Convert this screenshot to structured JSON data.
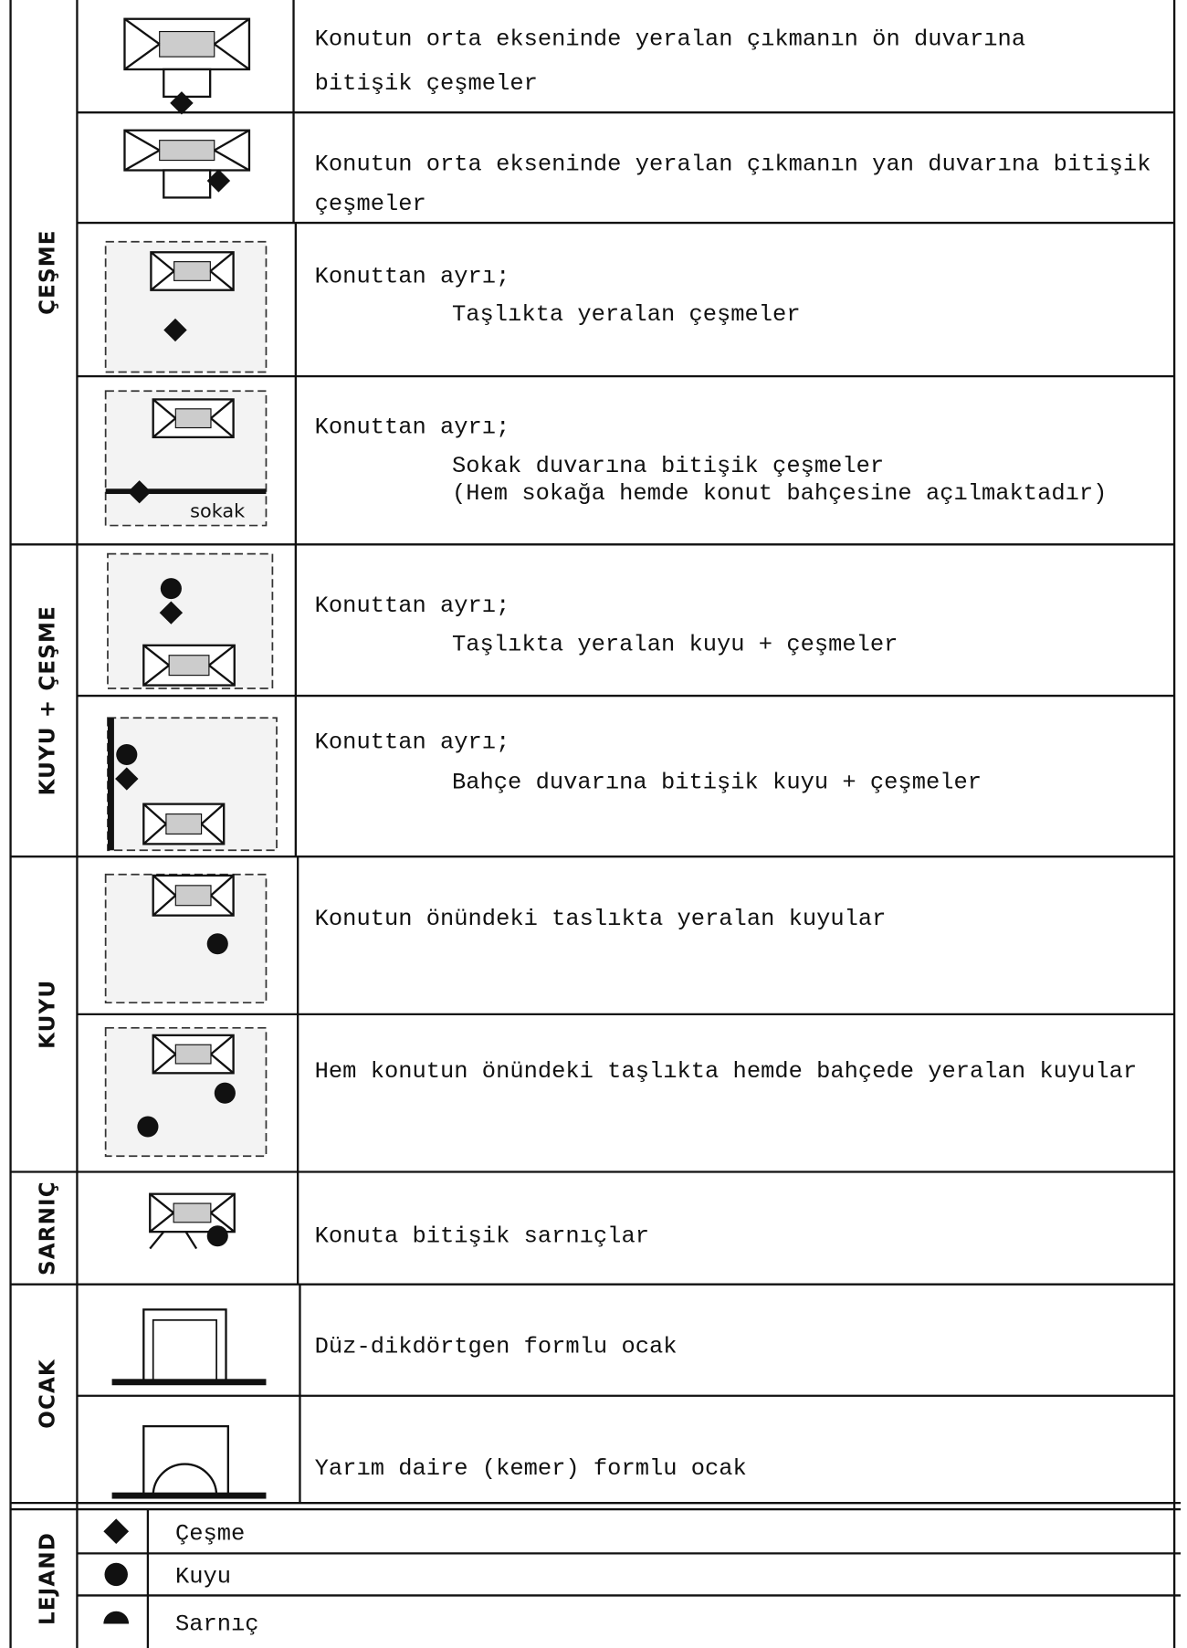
{
  "groups": [
    {
      "label": "ÇEŞME",
      "rows": [
        {
          "lines": [
            "Konutun orta ekseninde yeralan çıkmanın ön duvarına",
            "bitişik çeşmeler"
          ]
        },
        {
          "lines": [
            "Konutun orta ekseninde yeralan çıkmanın yan duvarına bitişik",
            "çeşmeler"
          ]
        },
        {
          "lines": [
            "Konuttan ayrı;",
            "Taşlıkta yeralan çeşmeler"
          ]
        },
        {
          "lines": [
            "Konuttan ayrı;",
            "Sokak duvarına bitişik çeşmeler",
            "(Hem sokağa hemde konut bahçesine açılmaktadır)"
          ],
          "icon_label": "sokak"
        }
      ]
    },
    {
      "label": "KUYU + ÇEŞME",
      "rows": [
        {
          "lines": [
            "Konuttan ayrı;",
            "Taşlıkta yeralan kuyu + çeşmeler"
          ]
        },
        {
          "lines": [
            "Konuttan ayrı;",
            "Bahçe duvarına bitişik kuyu + çeşmeler"
          ]
        }
      ]
    },
    {
      "label": "KUYU",
      "rows": [
        {
          "lines": [
            "Konutun önündeki taslıkta yeralan kuyular"
          ]
        },
        {
          "lines": [
            "Hem konutun önündeki taşlıkta hemde bahçede yeralan kuyular"
          ]
        }
      ]
    },
    {
      "label": "SARNIÇ",
      "rows": [
        {
          "lines": [
            "Konuta bitişik sarnıçlar"
          ]
        }
      ]
    },
    {
      "label": "OCAK",
      "rows": [
        {
          "lines": [
            "Düz-dikdörtgen formlu ocak"
          ]
        },
        {
          "lines": [
            "Yarım daire (kemer) formlu ocak"
          ]
        }
      ]
    }
  ],
  "legend": {
    "label": "LEJAND",
    "items": [
      "Çeşme",
      "Kuyu",
      "Sarnıç"
    ]
  }
}
